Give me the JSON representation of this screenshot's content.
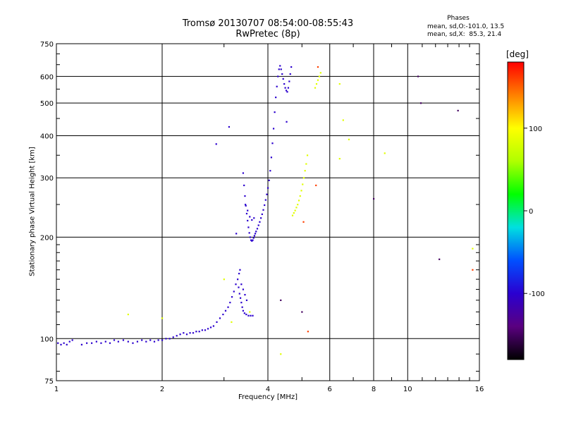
{
  "title_line1": "Tromsø 20130707 08:54:00-08:55:43",
  "title_line2": "RwPretec (8p)",
  "phases": {
    "title": "Phases",
    "o_line": "mean, sd,O:-101.0, 13.5",
    "x_line": "mean, sd,X:  85.3, 21.4"
  },
  "colorbar": {
    "unit": "[deg]",
    "ticks": [
      {
        "value": 100,
        "label": "100"
      },
      {
        "value": 0,
        "label": "0"
      },
      {
        "value": -100,
        "label": "-100"
      }
    ],
    "range": [
      -180,
      180
    ],
    "colormap": [
      "#000000",
      "#5a0080",
      "#2a00d0",
      "#0050ff",
      "#00e0e0",
      "#00ff00",
      "#b0ff00",
      "#ffff00",
      "#ff8000",
      "#ff0000"
    ]
  },
  "chart_data": {
    "type": "scatter",
    "xlabel": "Frequency [MHz]",
    "ylabel": "Stationary phase Virtual Height [km]",
    "xscale": "log",
    "yscale": "log",
    "xlim": [
      1,
      16
    ],
    "ylim": [
      75,
      750
    ],
    "grid": true,
    "x_ticks": [
      {
        "value": 1,
        "label": "1"
      },
      {
        "value": 2,
        "label": "2"
      },
      {
        "value": 4,
        "label": "4"
      },
      {
        "value": 6,
        "label": "6"
      },
      {
        "value": 8,
        "label": "8"
      },
      {
        "value": 10,
        "label": "10"
      },
      {
        "value": 16,
        "label": "16"
      }
    ],
    "y_ticks": [
      {
        "value": 75,
        "label": "75"
      },
      {
        "value": 100,
        "label": "100"
      },
      {
        "value": 200,
        "label": "200"
      },
      {
        "value": 300,
        "label": "300"
      },
      {
        "value": 400,
        "label": "400"
      },
      {
        "value": 500,
        "label": "500"
      },
      {
        "value": 600,
        "label": "600"
      },
      {
        "value": 750,
        "label": "750"
      }
    ],
    "series": [
      {
        "mode": "O",
        "phase_deg": -101,
        "points": [
          [
            1.01,
            97
          ],
          [
            1.03,
            96
          ],
          [
            1.05,
            97
          ],
          [
            1.07,
            96
          ],
          [
            1.09,
            98
          ],
          [
            1.11,
            99
          ],
          [
            1.18,
            96
          ],
          [
            1.22,
            97
          ],
          [
            1.26,
            97
          ],
          [
            1.3,
            98
          ],
          [
            1.34,
            97
          ],
          [
            1.38,
            98
          ],
          [
            1.42,
            97
          ],
          [
            1.46,
            99
          ],
          [
            1.5,
            98
          ],
          [
            1.55,
            99
          ],
          [
            1.6,
            98
          ],
          [
            1.65,
            97
          ],
          [
            1.7,
            98
          ],
          [
            1.75,
            99
          ],
          [
            1.8,
            98
          ],
          [
            1.85,
            99
          ],
          [
            1.9,
            98
          ],
          [
            1.95,
            99
          ],
          [
            2.0,
            99
          ],
          [
            2.05,
            100
          ],
          [
            2.1,
            100
          ],
          [
            2.15,
            101
          ],
          [
            2.2,
            102
          ],
          [
            2.25,
            103
          ],
          [
            2.3,
            104
          ],
          [
            2.35,
            103
          ],
          [
            2.4,
            104
          ],
          [
            2.45,
            104
          ],
          [
            2.5,
            105
          ],
          [
            2.55,
            105
          ],
          [
            2.6,
            106
          ],
          [
            2.65,
            106
          ],
          [
            2.7,
            107
          ],
          [
            2.75,
            108
          ],
          [
            2.8,
            109
          ],
          [
            2.86,
            112
          ],
          [
            2.92,
            115
          ],
          [
            2.98,
            118
          ],
          [
            3.03,
            121
          ],
          [
            3.08,
            124
          ],
          [
            3.12,
            128
          ],
          [
            3.16,
            133
          ],
          [
            3.2,
            138
          ],
          [
            3.24,
            145
          ],
          [
            3.28,
            150
          ],
          [
            3.31,
            156
          ],
          [
            3.33,
            160
          ],
          [
            3.3,
            142
          ],
          [
            3.32,
            136
          ],
          [
            3.34,
            132
          ],
          [
            3.36,
            128
          ],
          [
            3.38,
            124
          ],
          [
            3.4,
            121
          ],
          [
            3.43,
            119
          ],
          [
            3.47,
            118
          ],
          [
            3.52,
            117
          ],
          [
            3.57,
            117
          ],
          [
            3.62,
            117
          ],
          [
            3.36,
            145
          ],
          [
            3.4,
            140
          ],
          [
            3.44,
            135
          ],
          [
            3.48,
            130
          ],
          [
            3.4,
            310
          ],
          [
            3.42,
            285
          ],
          [
            3.44,
            265
          ],
          [
            3.46,
            248
          ],
          [
            3.48,
            235
          ],
          [
            3.5,
            224
          ],
          [
            3.52,
            214
          ],
          [
            3.54,
            206
          ],
          [
            3.56,
            200
          ],
          [
            3.58,
            196
          ],
          [
            3.6,
            195
          ],
          [
            3.62,
            196
          ],
          [
            3.64,
            199
          ],
          [
            3.66,
            202
          ],
          [
            3.68,
            205
          ],
          [
            3.7,
            208
          ],
          [
            3.73,
            212
          ],
          [
            3.76,
            217
          ],
          [
            3.79,
            222
          ],
          [
            3.82,
            228
          ],
          [
            3.85,
            234
          ],
          [
            3.88,
            241
          ],
          [
            3.91,
            249
          ],
          [
            3.94,
            258
          ],
          [
            3.97,
            268
          ],
          [
            4.0,
            280
          ],
          [
            4.03,
            295
          ],
          [
            4.06,
            315
          ],
          [
            4.09,
            345
          ],
          [
            4.12,
            380
          ],
          [
            4.15,
            420
          ],
          [
            4.18,
            470
          ],
          [
            4.21,
            520
          ],
          [
            4.24,
            560
          ],
          [
            4.27,
            600
          ],
          [
            4.3,
            630
          ],
          [
            4.33,
            645
          ],
          [
            4.36,
            630
          ],
          [
            4.39,
            610
          ],
          [
            4.42,
            590
          ],
          [
            4.45,
            570
          ],
          [
            4.48,
            555
          ],
          [
            4.51,
            545
          ],
          [
            4.54,
            540
          ],
          [
            4.57,
            555
          ],
          [
            4.6,
            580
          ],
          [
            4.63,
            610
          ],
          [
            4.66,
            640
          ],
          [
            3.45,
            250
          ],
          [
            3.5,
            240
          ],
          [
            3.55,
            230
          ],
          [
            3.6,
            225
          ],
          [
            3.65,
            228
          ],
          [
            2.85,
            378
          ],
          [
            3.1,
            425
          ],
          [
            3.25,
            205
          ],
          [
            4.52,
            440
          ]
        ]
      },
      {
        "mode": "X",
        "phase_deg": 85,
        "points": [
          [
            4.7,
            232
          ],
          [
            4.74,
            236
          ],
          [
            4.78,
            240
          ],
          [
            4.82,
            245
          ],
          [
            4.86,
            250
          ],
          [
            4.9,
            257
          ],
          [
            4.94,
            265
          ],
          [
            4.98,
            275
          ],
          [
            5.02,
            287
          ],
          [
            5.06,
            300
          ],
          [
            5.1,
            315
          ],
          [
            5.14,
            330
          ],
          [
            5.18,
            350
          ],
          [
            5.45,
            555
          ],
          [
            5.5,
            570
          ],
          [
            5.55,
            585
          ],
          [
            5.6,
            600
          ],
          [
            5.65,
            615
          ],
          [
            6.4,
            570
          ],
          [
            6.55,
            445
          ],
          [
            6.8,
            390
          ],
          [
            8.6,
            355
          ],
          [
            6.4,
            342
          ],
          [
            3.0,
            150
          ],
          [
            3.15,
            112
          ],
          [
            3.55,
            120
          ],
          [
            2.0,
            115
          ],
          [
            1.6,
            118
          ],
          [
            4.35,
            90
          ],
          [
            15.3,
            185
          ]
        ]
      },
      {
        "mode": "other",
        "phase_deg": 160,
        "points": [
          [
            5.55,
            640
          ],
          [
            15.3,
            160
          ],
          [
            5.2,
            105
          ],
          [
            5.05,
            222
          ],
          [
            5.48,
            285
          ]
        ]
      },
      {
        "mode": "other",
        "phase_deg": -150,
        "points": [
          [
            13.9,
            475
          ],
          [
            12.3,
            172
          ],
          [
            4.35,
            130
          ],
          [
            10.9,
            500
          ],
          [
            10.7,
            600
          ],
          [
            8.0,
            260
          ],
          [
            5.0,
            120
          ]
        ]
      }
    ]
  }
}
